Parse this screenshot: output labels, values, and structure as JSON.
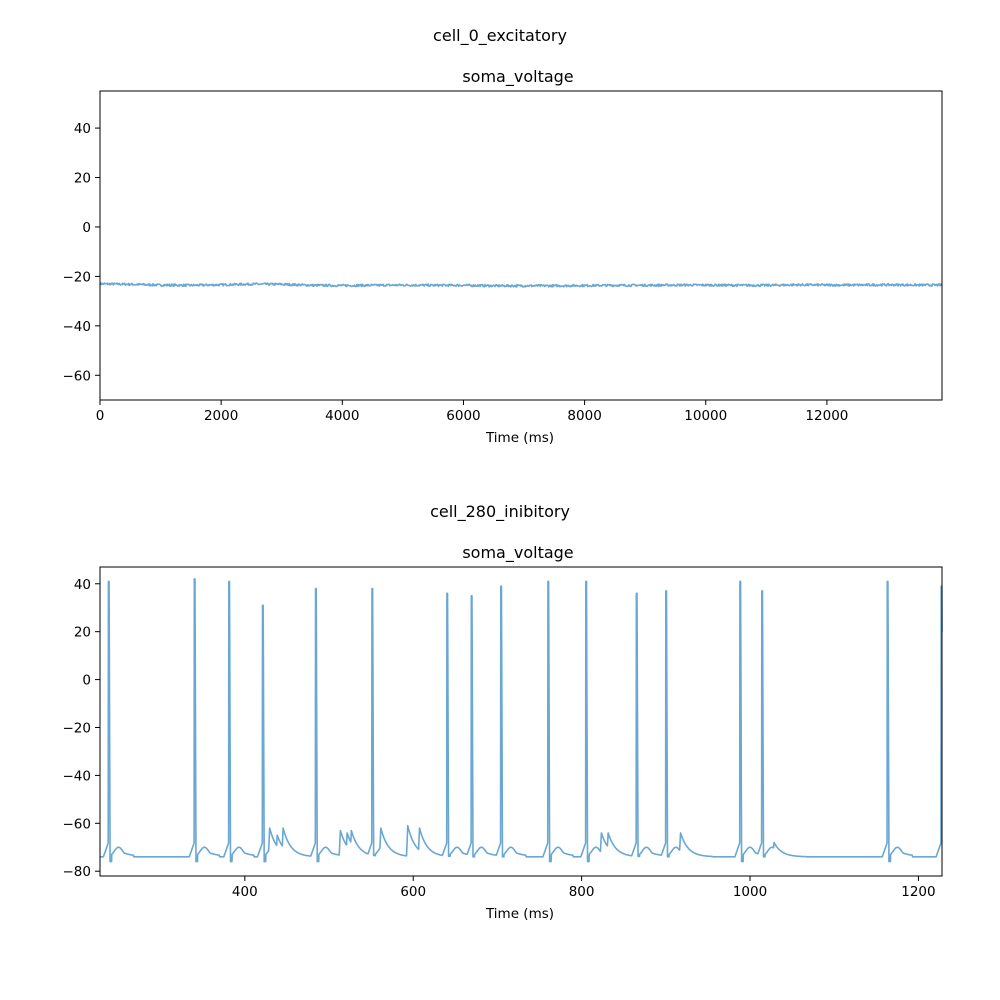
{
  "chart_data": [
    {
      "type": "line",
      "figure_title": "cell_0_excitatory",
      "title": "soma_voltage",
      "xlabel": "Time (ms)",
      "ylabel": "",
      "xlim": [
        0,
        13900
      ],
      "ylim": [
        -70,
        55
      ],
      "xticks": [
        0,
        2000,
        4000,
        6000,
        8000,
        10000,
        12000
      ],
      "yticks": [
        -60,
        -40,
        -20,
        0,
        20,
        40
      ],
      "line_color": "#6aa7d2",
      "grid": false,
      "series": [
        {
          "x": [
            0,
            500,
            1000,
            1500,
            2000,
            2500,
            3000,
            3500,
            4000,
            4500,
            5000,
            5500,
            6000,
            6500,
            7000,
            7500,
            8000,
            8500,
            9000,
            9500,
            10000,
            10500,
            11000,
            11500,
            12000,
            12500,
            13000,
            13500,
            13900
          ],
          "values": [
            -23.0,
            -23.2,
            -23.5,
            -23.6,
            -23.4,
            -23.1,
            -23.2,
            -23.6,
            -23.7,
            -23.6,
            -23.5,
            -23.6,
            -23.6,
            -23.8,
            -23.8,
            -23.8,
            -23.7,
            -23.6,
            -23.6,
            -23.5,
            -23.5,
            -23.6,
            -23.6,
            -23.4,
            -23.5,
            -23.5,
            -23.4,
            -23.5,
            -23.5
          ]
        }
      ]
    },
    {
      "type": "line",
      "figure_title": "cell_280_inibitory",
      "title": "soma_voltage",
      "xlabel": "Time (ms)",
      "ylabel": "",
      "xlim": [
        228,
        1228
      ],
      "ylim": [
        -82,
        47
      ],
      "xticks": [
        400,
        600,
        800,
        1000,
        1200
      ],
      "yticks": [
        -80,
        -60,
        -40,
        -20,
        0,
        20,
        40
      ],
      "line_color": "#6aa7d2",
      "grid": false,
      "resting_potential": -74,
      "spikes": [
        {
          "t": 238,
          "peak": 41
        },
        {
          "t": 340,
          "peak": 42
        },
        {
          "t": 381,
          "peak": 41
        },
        {
          "t": 421,
          "peak": 31
        },
        {
          "t": 484,
          "peak": 38
        },
        {
          "t": 551,
          "peak": 38
        },
        {
          "t": 640,
          "peak": 36
        },
        {
          "t": 669,
          "peak": 35
        },
        {
          "t": 704,
          "peak": 39
        },
        {
          "t": 760,
          "peak": 41
        },
        {
          "t": 805,
          "peak": 41
        },
        {
          "t": 865,
          "peak": 36
        },
        {
          "t": 900,
          "peak": 37
        },
        {
          "t": 988,
          "peak": 41
        },
        {
          "t": 1014,
          "peak": 37
        },
        {
          "t": 1163,
          "peak": 41
        },
        {
          "t": 1227,
          "peak": 39
        }
      ],
      "epsps": [
        {
          "t": 428,
          "peak": -62
        },
        {
          "t": 437,
          "peak": -65
        },
        {
          "t": 444,
          "peak": -62
        },
        {
          "t": 512,
          "peak": -63
        },
        {
          "t": 520,
          "peak": -64
        },
        {
          "t": 525,
          "peak": -63
        },
        {
          "t": 560,
          "peak": -62
        },
        {
          "t": 592,
          "peak": -61
        },
        {
          "t": 606,
          "peak": -62
        },
        {
          "t": 822,
          "peak": -64
        },
        {
          "t": 830,
          "peak": -64
        },
        {
          "t": 916,
          "peak": -64
        },
        {
          "t": 1027,
          "peak": -68
        }
      ]
    }
  ]
}
